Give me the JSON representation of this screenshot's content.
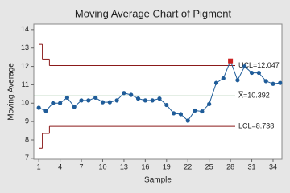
{
  "chart_data": {
    "type": "control",
    "title": "Moving Average Chart of Pigment",
    "x_label": "Sample",
    "y_label": "Moving Average",
    "x": [
      1,
      2,
      3,
      4,
      5,
      6,
      7,
      8,
      9,
      10,
      11,
      12,
      13,
      14,
      15,
      16,
      17,
      18,
      19,
      20,
      21,
      22,
      23,
      24,
      25,
      26,
      27,
      28,
      29,
      30,
      31,
      32,
      33,
      34,
      35
    ],
    "values": [
      9.75,
      9.58,
      10.0,
      10.0,
      10.3,
      9.8,
      10.15,
      10.15,
      10.3,
      10.05,
      10.05,
      10.15,
      10.55,
      10.45,
      10.25,
      10.15,
      10.15,
      10.25,
      9.9,
      9.45,
      9.4,
      9.05,
      9.6,
      9.55,
      9.95,
      11.1,
      11.35,
      12.3,
      11.25,
      12.0,
      11.65,
      11.65,
      11.2,
      11.05,
      11.1
    ],
    "color": "#1f5c99",
    "alarm_color": "#cc2222",
    "ucl": 12.047,
    "ucl_label": "UCL=12.047",
    "ucl_start": [
      13.2,
      12.4
    ],
    "center": 10.392,
    "center_label": "X̿=10.392",
    "lcl": 8.738,
    "lcl_label": "LCL=8.738",
    "lcl_start": [
      7.55,
      8.35
    ],
    "limit_color": "#8b1a1a",
    "center_color": "#2e7d32",
    "xlim": [
      0.3,
      35.25
    ],
    "xticks": [
      1,
      4,
      7,
      10,
      13,
      16,
      19,
      22,
      25,
      28,
      31,
      34
    ],
    "ylim": [
      6.95,
      14.3
    ],
    "yticks": [
      7,
      8,
      9,
      10,
      11,
      12,
      13,
      14
    ]
  }
}
